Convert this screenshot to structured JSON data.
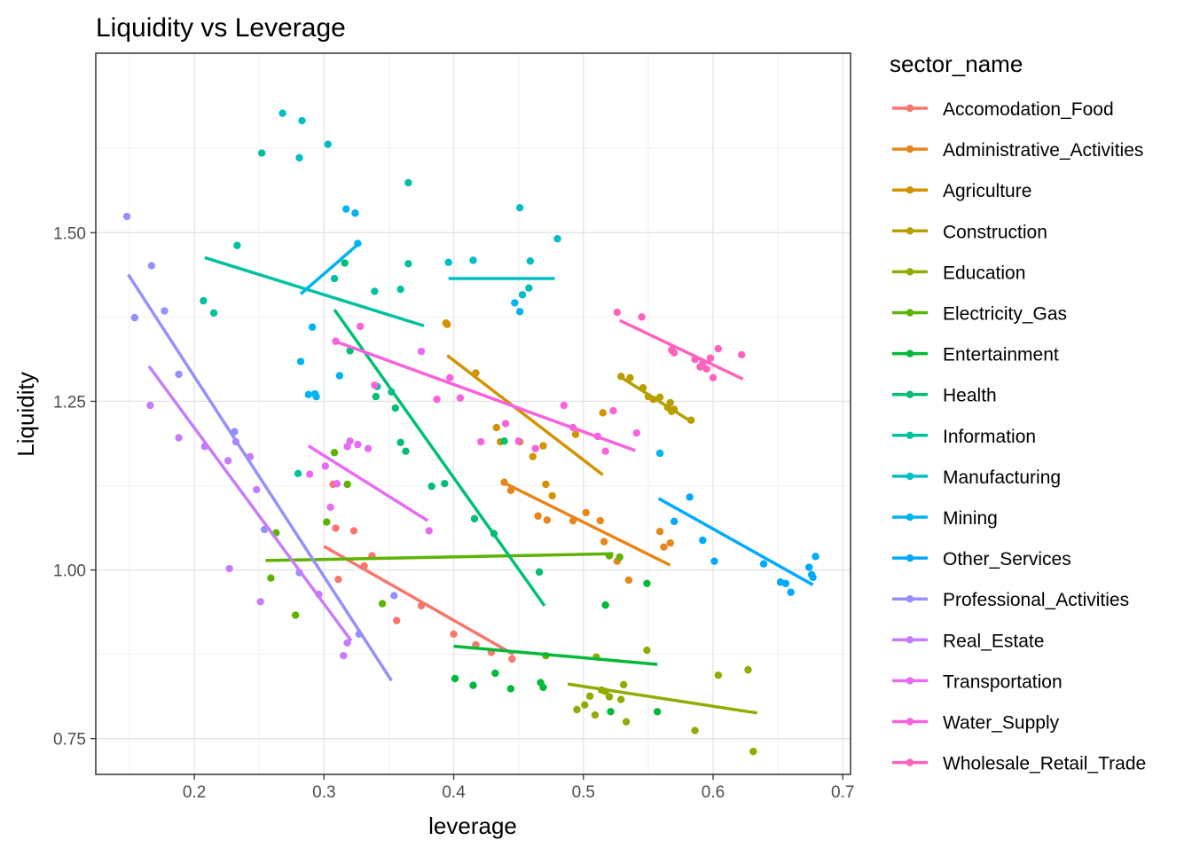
{
  "chart_data": {
    "type": "scatter",
    "title": "Liquidity vs Leverage",
    "xlabel": "leverage",
    "ylabel": "Liquidity",
    "xlim": [
      0.124,
      0.706
    ],
    "ylim": [
      0.697,
      1.766
    ],
    "x_ticks": [
      0.2,
      0.3,
      0.4,
      0.5,
      0.6,
      0.7
    ],
    "x_tick_labels": [
      "0.2",
      "0.3",
      "0.4",
      "0.5",
      "0.6",
      "0.7"
    ],
    "y_ticks": [
      0.75,
      1.0,
      1.25,
      1.5
    ],
    "y_tick_labels": [
      "0.75",
      "1.00",
      "1.25",
      "1.50"
    ],
    "grid": true,
    "legend_title": "sector_name",
    "legend_position": "right",
    "series": [
      {
        "name": "Accomodation_Food",
        "color": "#F8766D",
        "points": [
          [
            0.307,
            1.127
          ],
          [
            0.309,
            1.062
          ],
          [
            0.311,
            0.986
          ],
          [
            0.323,
            1.058
          ],
          [
            0.331,
            1.006
          ],
          [
            0.337,
            1.021
          ],
          [
            0.356,
            0.925
          ],
          [
            0.375,
            0.947
          ],
          [
            0.4,
            0.905
          ],
          [
            0.417,
            0.889
          ],
          [
            0.429,
            0.878
          ],
          [
            0.445,
            0.868
          ]
        ],
        "trend": [
          [
            0.3,
            1.035
          ],
          [
            0.446,
            0.875
          ]
        ]
      },
      {
        "name": "Administrative_Activities",
        "color": "#E7861B",
        "points": [
          [
            0.439,
            1.13
          ],
          [
            0.444,
            1.118
          ],
          [
            0.465,
            1.08
          ],
          [
            0.472,
            1.074
          ],
          [
            0.492,
            1.073
          ],
          [
            0.502,
            1.085
          ],
          [
            0.513,
            1.073
          ],
          [
            0.516,
            1.042
          ],
          [
            0.526,
            1.013
          ],
          [
            0.535,
            0.985
          ],
          [
            0.559,
            1.057
          ],
          [
            0.562,
            1.034
          ],
          [
            0.567,
            1.04
          ]
        ],
        "trend": [
          [
            0.438,
            1.13
          ],
          [
            0.567,
            1.007
          ]
        ]
      },
      {
        "name": "Agriculture",
        "color": "#D39200",
        "points": [
          [
            0.394,
            1.366
          ],
          [
            0.395,
            1.364
          ],
          [
            0.417,
            1.292
          ],
          [
            0.433,
            1.211
          ],
          [
            0.436,
            1.19
          ],
          [
            0.451,
            1.19
          ],
          [
            0.461,
            1.168
          ],
          [
            0.469,
            1.184
          ],
          [
            0.471,
            1.127
          ],
          [
            0.476,
            1.11
          ],
          [
            0.494,
            1.201
          ],
          [
            0.515,
            1.233
          ]
        ],
        "trend": [
          [
            0.395,
            1.318
          ],
          [
            0.515,
            1.141
          ]
        ]
      },
      {
        "name": "Construction",
        "color": "#B79F00",
        "points": [
          [
            0.529,
            1.287
          ],
          [
            0.536,
            1.285
          ],
          [
            0.546,
            1.27
          ],
          [
            0.55,
            1.257
          ],
          [
            0.554,
            1.253
          ],
          [
            0.559,
            1.256
          ],
          [
            0.565,
            1.241
          ],
          [
            0.567,
            1.248
          ],
          [
            0.568,
            1.235
          ],
          [
            0.57,
            1.238
          ],
          [
            0.583,
            1.222
          ]
        ],
        "trend": [
          [
            0.527,
            1.288
          ],
          [
            0.584,
            1.219
          ]
        ]
      },
      {
        "name": "Education",
        "color": "#93AA00",
        "points": [
          [
            0.495,
            0.793
          ],
          [
            0.501,
            0.8
          ],
          [
            0.505,
            0.813
          ],
          [
            0.509,
            0.785
          ],
          [
            0.51,
            0.871
          ],
          [
            0.514,
            0.822
          ],
          [
            0.517,
            0.82
          ],
          [
            0.52,
            0.812
          ],
          [
            0.529,
            0.808
          ],
          [
            0.531,
            0.83
          ],
          [
            0.533,
            0.775
          ],
          [
            0.549,
            0.881
          ],
          [
            0.586,
            0.762
          ],
          [
            0.604,
            0.844
          ],
          [
            0.627,
            0.852
          ],
          [
            0.631,
            0.731
          ]
        ],
        "trend": [
          [
            0.488,
            0.831
          ],
          [
            0.634,
            0.788
          ]
        ]
      },
      {
        "name": "Electricity_Gas",
        "color": "#5EB300",
        "points": [
          [
            0.259,
            0.988
          ],
          [
            0.263,
            1.055
          ],
          [
            0.278,
            0.933
          ],
          [
            0.302,
            1.071
          ],
          [
            0.308,
            1.174
          ],
          [
            0.318,
            1.127
          ],
          [
            0.345,
            0.95
          ],
          [
            0.471,
            0.873
          ],
          [
            0.52,
            1.021
          ],
          [
            0.528,
            1.019
          ]
        ],
        "trend": [
          [
            0.255,
            1.014
          ],
          [
            0.523,
            1.024
          ]
        ]
      },
      {
        "name": "Entertainment",
        "color": "#00BA38",
        "points": [
          [
            0.401,
            0.839
          ],
          [
            0.415,
            0.829
          ],
          [
            0.432,
            0.847
          ],
          [
            0.444,
            0.824
          ],
          [
            0.467,
            0.833
          ],
          [
            0.469,
            0.826
          ],
          [
            0.517,
            0.948
          ],
          [
            0.521,
            0.79
          ],
          [
            0.549,
            0.98
          ],
          [
            0.557,
            0.79
          ]
        ],
        "trend": [
          [
            0.4,
            0.887
          ],
          [
            0.557,
            0.86
          ]
        ]
      },
      {
        "name": "Health",
        "color": "#00BF74",
        "points": [
          [
            0.316,
            1.455
          ],
          [
            0.32,
            1.325
          ],
          [
            0.34,
            1.257
          ],
          [
            0.355,
            1.24
          ],
          [
            0.359,
            1.189
          ],
          [
            0.363,
            1.176
          ],
          [
            0.383,
            1.124
          ],
          [
            0.393,
            1.128
          ],
          [
            0.416,
            1.076
          ],
          [
            0.431,
            1.054
          ],
          [
            0.439,
            1.191
          ],
          [
            0.466,
            0.997
          ]
        ],
        "trend": [
          [
            0.308,
            1.386
          ],
          [
            0.47,
            0.947
          ]
        ]
      },
      {
        "name": "Information",
        "color": "#00C19F",
        "points": [
          [
            0.207,
            1.399
          ],
          [
            0.215,
            1.381
          ],
          [
            0.233,
            1.481
          ],
          [
            0.252,
            1.618
          ],
          [
            0.28,
            1.143
          ],
          [
            0.308,
            1.432
          ],
          [
            0.339,
            1.413
          ],
          [
            0.341,
            1.272
          ],
          [
            0.352,
            1.264
          ],
          [
            0.359,
            1.416
          ],
          [
            0.365,
            1.454
          ],
          [
            0.365,
            1.574
          ]
        ],
        "trend": [
          [
            0.208,
            1.463
          ],
          [
            0.377,
            1.362
          ]
        ]
      },
      {
        "name": "Manufacturing",
        "color": "#00BFC4",
        "points": [
          [
            0.268,
            1.677
          ],
          [
            0.281,
            1.611
          ],
          [
            0.283,
            1.666
          ],
          [
            0.303,
            1.631
          ],
          [
            0.396,
            1.456
          ],
          [
            0.415,
            1.459
          ],
          [
            0.451,
            1.537
          ],
          [
            0.453,
            1.408
          ],
          [
            0.458,
            1.418
          ],
          [
            0.459,
            1.458
          ],
          [
            0.48,
            1.491
          ]
        ],
        "trend": [
          [
            0.396,
            1.432
          ],
          [
            0.478,
            1.432
          ]
        ]
      },
      {
        "name": "Mining",
        "color": "#00B4F0",
        "points": [
          [
            0.282,
            1.309
          ],
          [
            0.288,
            1.26
          ],
          [
            0.291,
            1.36
          ],
          [
            0.293,
            1.261
          ],
          [
            0.294,
            1.257
          ],
          [
            0.312,
            1.288
          ],
          [
            0.317,
            1.535
          ],
          [
            0.324,
            1.529
          ],
          [
            0.326,
            1.484
          ],
          [
            0.447,
            1.396
          ],
          [
            0.451,
            1.383
          ],
          [
            0.559,
            1.173
          ]
        ],
        "trend": [
          [
            0.282,
            1.409
          ],
          [
            0.327,
            1.484
          ]
        ]
      },
      {
        "name": "Other_Services",
        "color": "#00A9FF",
        "points": [
          [
            0.57,
            1.072
          ],
          [
            0.582,
            1.108
          ],
          [
            0.592,
            1.044
          ],
          [
            0.601,
            1.013
          ],
          [
            0.639,
            1.009
          ],
          [
            0.652,
            0.982
          ],
          [
            0.656,
            0.98
          ],
          [
            0.66,
            0.967
          ],
          [
            0.674,
            1.004
          ],
          [
            0.676,
            0.993
          ],
          [
            0.677,
            0.989
          ],
          [
            0.679,
            1.02
          ]
        ],
        "trend": [
          [
            0.558,
            1.106
          ],
          [
            0.677,
            0.978
          ]
        ]
      },
      {
        "name": "Professional_Activities",
        "color": "#9590FF",
        "points": [
          [
            0.148,
            1.524
          ],
          [
            0.154,
            1.374
          ],
          [
            0.167,
            1.451
          ],
          [
            0.177,
            1.384
          ],
          [
            0.188,
            1.29
          ],
          [
            0.231,
            1.205
          ],
          [
            0.254,
            1.06
          ],
          [
            0.281,
            0.996
          ],
          [
            0.327,
            0.905
          ],
          [
            0.354,
            0.962
          ]
        ],
        "trend": [
          [
            0.149,
            1.438
          ],
          [
            0.352,
            0.836
          ]
        ]
      },
      {
        "name": "Real_Estate",
        "color": "#C77CFF",
        "points": [
          [
            0.166,
            1.244
          ],
          [
            0.188,
            1.196
          ],
          [
            0.208,
            1.183
          ],
          [
            0.226,
            1.162
          ],
          [
            0.232,
            1.19
          ],
          [
            0.243,
            1.168
          ],
          [
            0.248,
            1.119
          ],
          [
            0.251,
            0.953
          ],
          [
            0.227,
            1.002
          ],
          [
            0.296,
            0.964
          ],
          [
            0.315,
            0.873
          ],
          [
            0.318,
            0.892
          ]
        ],
        "trend": [
          [
            0.165,
            1.302
          ],
          [
            0.321,
            0.895
          ]
        ]
      },
      {
        "name": "Transportation",
        "color": "#E76BF3",
        "points": [
          [
            0.289,
            1.142
          ],
          [
            0.301,
            1.154
          ],
          [
            0.305,
            1.093
          ],
          [
            0.31,
            1.128
          ],
          [
            0.318,
            1.183
          ],
          [
            0.32,
            1.191
          ],
          [
            0.326,
            1.186
          ],
          [
            0.334,
            1.18
          ],
          [
            0.375,
            1.324
          ],
          [
            0.381,
            1.058
          ]
        ],
        "trend": [
          [
            0.288,
            1.184
          ],
          [
            0.38,
            1.073
          ]
        ]
      },
      {
        "name": "Water_Supply",
        "color": "#FA62DB",
        "points": [
          [
            0.309,
            1.339
          ],
          [
            0.328,
            1.361
          ],
          [
            0.339,
            1.274
          ],
          [
            0.387,
            1.253
          ],
          [
            0.397,
            1.285
          ],
          [
            0.405,
            1.255
          ],
          [
            0.421,
            1.19
          ],
          [
            0.44,
            1.217
          ],
          [
            0.45,
            1.191
          ],
          [
            0.463,
            1.18
          ],
          [
            0.485,
            1.244
          ],
          [
            0.492,
            1.211
          ],
          [
            0.511,
            1.198
          ],
          [
            0.517,
            1.176
          ],
          [
            0.523,
            1.236
          ],
          [
            0.541,
            1.203
          ]
        ],
        "trend": [
          [
            0.31,
            1.338
          ],
          [
            0.54,
            1.177
          ]
        ]
      },
      {
        "name": "Wholesale_Retail_Trade",
        "color": "#FF62BC",
        "points": [
          [
            0.526,
            1.382
          ],
          [
            0.545,
            1.375
          ],
          [
            0.568,
            1.326
          ],
          [
            0.57,
            1.322
          ],
          [
            0.586,
            1.312
          ],
          [
            0.59,
            1.301
          ],
          [
            0.592,
            1.307
          ],
          [
            0.595,
            1.298
          ],
          [
            0.598,
            1.314
          ],
          [
            0.6,
            1.285
          ],
          [
            0.604,
            1.328
          ],
          [
            0.622,
            1.319
          ]
        ],
        "trend": [
          [
            0.528,
            1.37
          ],
          [
            0.623,
            1.283
          ]
        ]
      }
    ]
  }
}
